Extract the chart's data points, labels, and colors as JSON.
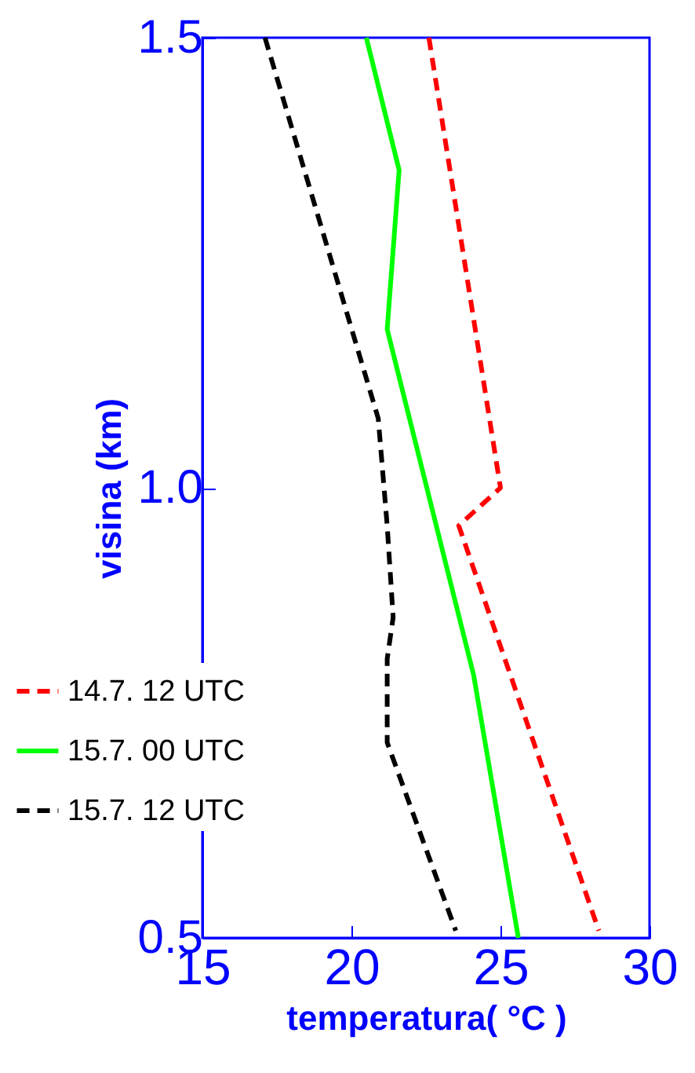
{
  "chart_data": {
    "type": "line",
    "xlabel": "temperatura( °C )",
    "ylabel": "visina (km)",
    "xlim": [
      15,
      30
    ],
    "xticks": [
      15,
      20,
      25,
      30
    ],
    "ylim": [
      0.5,
      1.5
    ],
    "yticks": [
      0.5,
      {
        "value": 1,
        "label": "1.0"
      },
      1.5
    ],
    "grid": false,
    "legend": "left",
    "marker": "none",
    "series": [
      {
        "name": "14.7. 12 UTC",
        "color": "#ff0000",
        "line_style": "dashed",
        "x": [
          22.6,
          25.0,
          23.6,
          28.3
        ],
        "values": [
          1.5,
          1.0,
          0.958,
          0.508
        ]
      },
      {
        "name": "15.7. 00 UTC",
        "color": "#00ff00",
        "line_style": "solid",
        "x": [
          20.5,
          21.6,
          21.2,
          24.1,
          25.6
        ],
        "values": [
          1.5,
          1.353,
          1.176,
          0.792,
          0.5
        ]
      },
      {
        "name": "15.7. 12 UTC",
        "color": "#000000",
        "line_style": "dashed",
        "x": [
          17.1,
          20.9,
          21.2,
          21.4,
          21.2,
          21.2,
          23.5
        ],
        "values": [
          1.5,
          1.077,
          0.958,
          0.856,
          0.81,
          0.717,
          0.508
        ]
      }
    ]
  }
}
